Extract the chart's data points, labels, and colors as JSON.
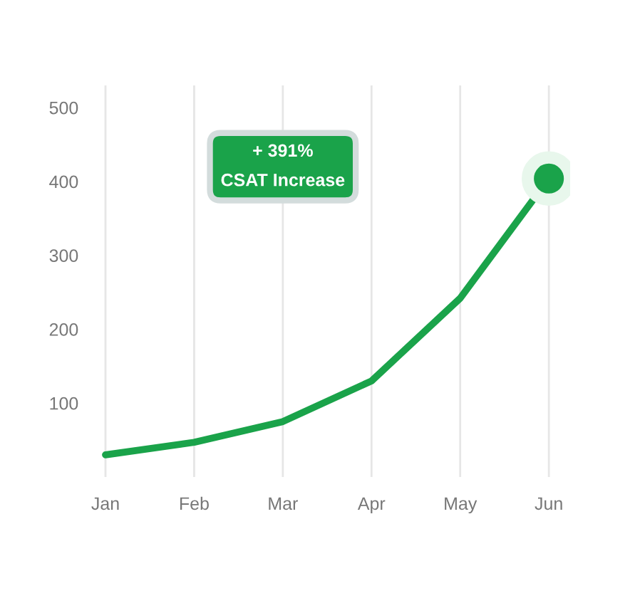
{
  "chart_data": {
    "type": "line",
    "categories": [
      "Jan",
      "Feb",
      "Mar",
      "Apr",
      "May",
      "Jun"
    ],
    "series": [
      {
        "color": "#1aa34a",
        "values": [
          30,
          47,
          75,
          130,
          242,
          404
        ],
        "marker": "none"
      },
      {
        "type": "scatter",
        "color": "#1aa34a",
        "values": [
          null,
          null,
          null,
          null,
          null,
          404
        ],
        "marker": "circle"
      }
    ],
    "ylim": [
      0,
      530
    ],
    "yticks": [
      100,
      200,
      300,
      400,
      500
    ],
    "grid": "x",
    "annotations": [
      "+ 391%\nCSAT Increase"
    ]
  }
}
